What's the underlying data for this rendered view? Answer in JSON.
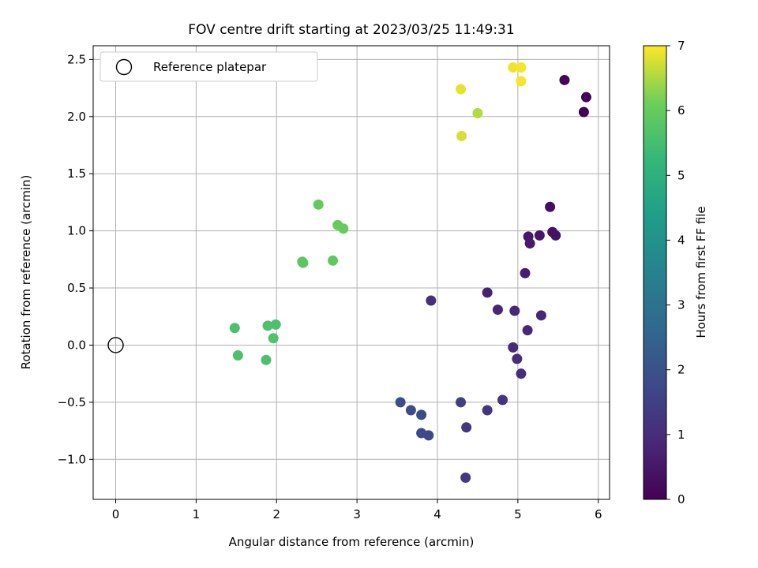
{
  "chart_data": {
    "type": "scatter",
    "title": "FOV centre drift starting at 2023/03/25 11:49:31",
    "xlabel": "Angular distance from reference (arcmin)",
    "ylabel": "Rotation from reference (arcmin)",
    "xlim": [
      -0.28,
      6.14
    ],
    "ylim": [
      -1.35,
      2.62
    ],
    "xticks": [
      0,
      1,
      2,
      3,
      4,
      5,
      6
    ],
    "xtick_labels": [
      "0",
      "1",
      "2",
      "3",
      "4",
      "5",
      "6"
    ],
    "yticks": [
      -1.0,
      -0.5,
      0.0,
      0.5,
      1.0,
      1.5,
      2.0,
      2.5
    ],
    "ytick_labels": [
      "−1.0",
      "−0.5",
      "0.0",
      "0.5",
      "1.0",
      "1.5",
      "2.0",
      "2.5"
    ],
    "grid": true,
    "colormap": "viridis",
    "colorbar": {
      "label": "Hours from first FF file",
      "range": [
        0,
        7
      ],
      "ticks": [
        0,
        1,
        2,
        3,
        4,
        5,
        6,
        7
      ],
      "tick_labels": [
        "0",
        "1",
        "2",
        "3",
        "4",
        "5",
        "6",
        "7"
      ]
    },
    "legend": {
      "position": "upper-left",
      "entries": [
        {
          "label": "Reference platepar",
          "marker": "open-circle"
        }
      ]
    },
    "reference_point": {
      "x": 0,
      "y": 0
    },
    "points": [
      {
        "x": 5.82,
        "y": 2.04,
        "hours": 0.0
      },
      {
        "x": 5.85,
        "y": 2.17,
        "hours": 0.05
      },
      {
        "x": 5.58,
        "y": 2.32,
        "hours": 0.1
      },
      {
        "x": 5.4,
        "y": 1.21,
        "hours": 0.3
      },
      {
        "x": 5.43,
        "y": 0.99,
        "hours": 0.35
      },
      {
        "x": 5.47,
        "y": 0.96,
        "hours": 0.4
      },
      {
        "x": 5.27,
        "y": 0.96,
        "hours": 0.45
      },
      {
        "x": 5.13,
        "y": 0.95,
        "hours": 0.5
      },
      {
        "x": 5.15,
        "y": 0.89,
        "hours": 0.55
      },
      {
        "x": 5.09,
        "y": 0.63,
        "hours": 0.65
      },
      {
        "x": 4.62,
        "y": 0.46,
        "hours": 0.75
      },
      {
        "x": 4.75,
        "y": 0.31,
        "hours": 0.8
      },
      {
        "x": 4.96,
        "y": 0.3,
        "hours": 0.85
      },
      {
        "x": 5.29,
        "y": 0.26,
        "hours": 0.85
      },
      {
        "x": 5.12,
        "y": 0.13,
        "hours": 0.9
      },
      {
        "x": 4.94,
        "y": -0.02,
        "hours": 0.95
      },
      {
        "x": 4.99,
        "y": -0.12,
        "hours": 1.0
      },
      {
        "x": 5.04,
        "y": -0.25,
        "hours": 1.0
      },
      {
        "x": 3.92,
        "y": 0.39,
        "hours": 1.1
      },
      {
        "x": 4.81,
        "y": -0.48,
        "hours": 1.2
      },
      {
        "x": 4.62,
        "y": -0.57,
        "hours": 1.25
      },
      {
        "x": 4.36,
        "y": -0.72,
        "hours": 1.3
      },
      {
        "x": 4.35,
        "y": -1.16,
        "hours": 1.35
      },
      {
        "x": 4.29,
        "y": -0.5,
        "hours": 1.5
      },
      {
        "x": 3.89,
        "y": -0.79,
        "hours": 1.7
      },
      {
        "x": 3.8,
        "y": -0.77,
        "hours": 1.75
      },
      {
        "x": 3.8,
        "y": -0.61,
        "hours": 1.8
      },
      {
        "x": 3.67,
        "y": -0.57,
        "hours": 1.85
      },
      {
        "x": 3.54,
        "y": -0.5,
        "hours": 1.9
      },
      {
        "x": 1.87,
        "y": -0.13,
        "hours": 5.6
      },
      {
        "x": 1.52,
        "y": -0.09,
        "hours": 5.6
      },
      {
        "x": 1.48,
        "y": 0.15,
        "hours": 5.6
      },
      {
        "x": 1.89,
        "y": 0.17,
        "hours": 5.6
      },
      {
        "x": 1.99,
        "y": 0.18,
        "hours": 5.6
      },
      {
        "x": 1.96,
        "y": 0.06,
        "hours": 5.65
      },
      {
        "x": 2.33,
        "y": 0.72,
        "hours": 5.85
      },
      {
        "x": 2.32,
        "y": 0.73,
        "hours": 5.85
      },
      {
        "x": 2.7,
        "y": 0.74,
        "hours": 5.9
      },
      {
        "x": 2.52,
        "y": 1.23,
        "hours": 5.95
      },
      {
        "x": 2.76,
        "y": 1.05,
        "hours": 6.0
      },
      {
        "x": 2.83,
        "y": 1.02,
        "hours": 6.0
      },
      {
        "x": 4.3,
        "y": 1.83,
        "hours": 6.75
      },
      {
        "x": 4.5,
        "y": 2.03,
        "hours": 6.55
      },
      {
        "x": 4.29,
        "y": 2.24,
        "hours": 6.85
      },
      {
        "x": 4.94,
        "y": 2.43,
        "hours": 6.9
      },
      {
        "x": 5.04,
        "y": 2.43,
        "hours": 6.95
      },
      {
        "x": 5.04,
        "y": 2.31,
        "hours": 6.95
      }
    ]
  }
}
